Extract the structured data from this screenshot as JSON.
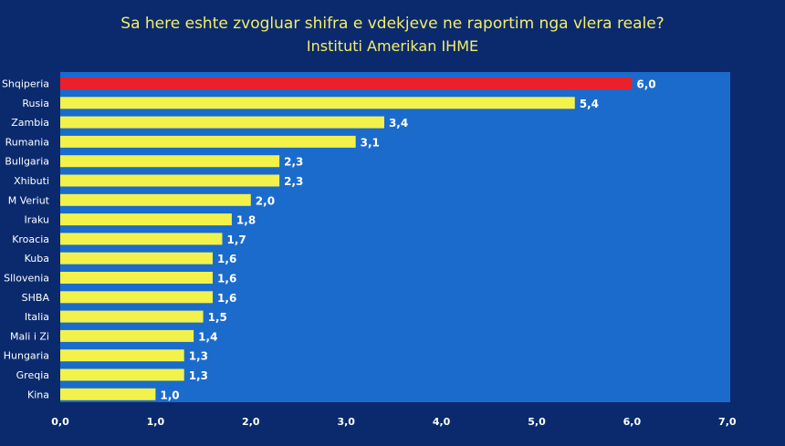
{
  "chart_data": {
    "type": "bar",
    "orientation": "horizontal",
    "title": "Sa here eshte zvogluar shifra e vdekjeve ne raportim nga vlera reale?",
    "subtitle": "Instituti Amerikan IHME",
    "categories": [
      "Shqiperia",
      "Rusia",
      "Zambia",
      "Rumania",
      "Bullgaria",
      "Xhibuti",
      "M Veriut",
      "Iraku",
      "Kroacia",
      "Kuba",
      "Sllovenia",
      "SHBA",
      "Italia",
      "Mali i Zi",
      "Hungaria",
      "Greqia",
      "Kina"
    ],
    "values": [
      6.0,
      5.4,
      3.4,
      3.1,
      2.3,
      2.3,
      2.0,
      1.8,
      1.7,
      1.6,
      1.6,
      1.6,
      1.5,
      1.4,
      1.3,
      1.3,
      1.0
    ],
    "value_labels": [
      "6,0",
      "5,4",
      "3,4",
      "3,1",
      "2,3",
      "2,3",
      "2,0",
      "1,8",
      "1,7",
      "1,6",
      "1,6",
      "1,6",
      "1,5",
      "1,4",
      "1,3",
      "1,3",
      "1,0"
    ],
    "x_ticks": [
      0,
      1,
      2,
      3,
      4,
      5,
      6,
      7
    ],
    "x_tick_labels": [
      "0,0",
      "1,0",
      "2,0",
      "3,0",
      "4,0",
      "5,0",
      "6,0",
      "7,0"
    ],
    "xlim": [
      0,
      7
    ],
    "grid": false,
    "legend": "none",
    "colors": {
      "highlight": "#e8212b",
      "bar": "#f2f24a",
      "plot_background": "#1b6bcc",
      "page_background": "#0b2a6e",
      "title": "#f3ee6a"
    },
    "highlight_index": 0
  }
}
